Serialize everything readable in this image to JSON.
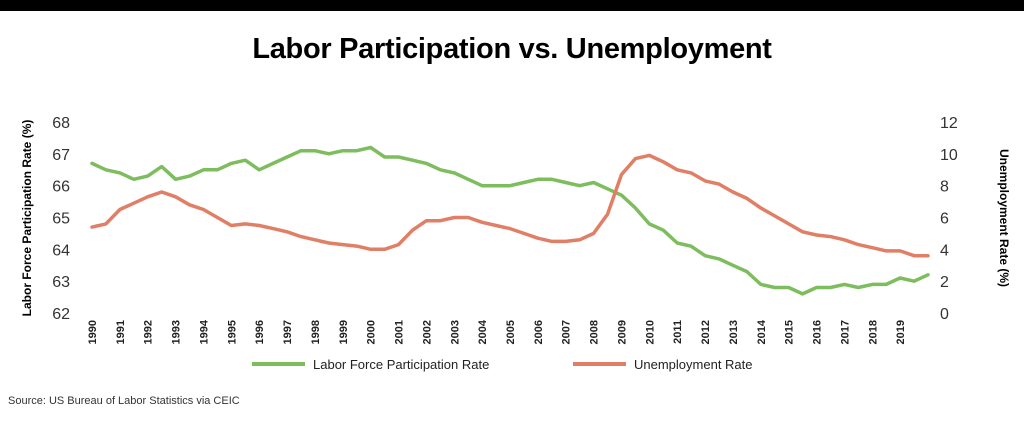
{
  "title": "Labor Participation vs. Unemployment",
  "source": "Source: US Bureau of Labor Statistics via CEIC",
  "colors": {
    "lfpr": "#7dbd5e",
    "unemp": "#e07f65",
    "background": "#ffffff",
    "topbar": "#000000"
  },
  "chart_data": {
    "type": "line",
    "title": "Labor Participation vs. Unemployment",
    "ylabel_left": "Labor Force Participation Rate (%)",
    "ylabel_right": "Unemployment Rate (%)",
    "xlabel": "",
    "ylim_left": [
      62,
      68
    ],
    "yticks_left": [
      62,
      63,
      64,
      65,
      66,
      67,
      68
    ],
    "ylim_right": [
      0,
      12
    ],
    "yticks_right": [
      0,
      2,
      4,
      6,
      8,
      10,
      12
    ],
    "xlim": [
      1990,
      2020
    ],
    "xticks": [
      "1990",
      "1991",
      "1992",
      "1993",
      "1994",
      "1995",
      "1996",
      "1997",
      "1998",
      "1999",
      "2000",
      "2001",
      "2002",
      "2003",
      "2004",
      "2005",
      "2006",
      "2007",
      "2008",
      "2009",
      "2010",
      "2011",
      "2012",
      "2013",
      "2014",
      "2015",
      "2016",
      "2017",
      "2018",
      "2019"
    ],
    "grid": false,
    "legend_position": "bottom",
    "series": [
      {
        "name": "Labor Force Participation Rate",
        "axis": "left",
        "color": "#7dbd5e",
        "x": [
          1990.0,
          1990.5,
          1991.0,
          1991.5,
          1992.0,
          1992.5,
          1993.0,
          1993.5,
          1994.0,
          1994.5,
          1995.0,
          1995.5,
          1996.0,
          1996.5,
          1997.0,
          1997.5,
          1998.0,
          1998.5,
          1999.0,
          1999.5,
          2000.0,
          2000.5,
          2001.0,
          2001.5,
          2002.0,
          2002.5,
          2003.0,
          2003.5,
          2004.0,
          2004.5,
          2005.0,
          2005.5,
          2006.0,
          2006.5,
          2007.0,
          2007.5,
          2008.0,
          2008.5,
          2009.0,
          2009.5,
          2010.0,
          2010.5,
          2011.0,
          2011.5,
          2012.0,
          2012.5,
          2013.0,
          2013.5,
          2014.0,
          2014.5,
          2015.0,
          2015.5,
          2016.0,
          2016.5,
          2017.0,
          2017.5,
          2018.0,
          2018.5,
          2019.0,
          2019.5,
          2020.0
        ],
        "y": [
          66.7,
          66.5,
          66.4,
          66.2,
          66.3,
          66.6,
          66.2,
          66.3,
          66.5,
          66.5,
          66.7,
          66.8,
          66.5,
          66.7,
          66.9,
          67.1,
          67.1,
          67.0,
          67.1,
          67.1,
          67.2,
          66.9,
          66.9,
          66.8,
          66.7,
          66.5,
          66.4,
          66.2,
          66.0,
          66.0,
          66.0,
          66.1,
          66.2,
          66.2,
          66.1,
          66.0,
          66.1,
          65.9,
          65.7,
          65.3,
          64.8,
          64.6,
          64.2,
          64.1,
          63.8,
          63.7,
          63.5,
          63.3,
          62.9,
          62.8,
          62.8,
          62.6,
          62.8,
          62.8,
          62.9,
          62.8,
          62.9,
          62.9,
          63.1,
          63.0,
          63.2
        ]
      },
      {
        "name": "Unemployment Rate",
        "axis": "right",
        "color": "#e07f65",
        "x": [
          1990.0,
          1990.5,
          1991.0,
          1991.5,
          1992.0,
          1992.5,
          1993.0,
          1993.5,
          1994.0,
          1994.5,
          1995.0,
          1995.5,
          1996.0,
          1996.5,
          1997.0,
          1997.5,
          1998.0,
          1998.5,
          1999.0,
          1999.5,
          2000.0,
          2000.5,
          2001.0,
          2001.5,
          2002.0,
          2002.5,
          2003.0,
          2003.5,
          2004.0,
          2004.5,
          2005.0,
          2005.5,
          2006.0,
          2006.5,
          2007.0,
          2007.5,
          2008.0,
          2008.5,
          2009.0,
          2009.5,
          2010.0,
          2010.5,
          2011.0,
          2011.5,
          2012.0,
          2012.5,
          2013.0,
          2013.5,
          2014.0,
          2014.5,
          2015.0,
          2015.5,
          2016.0,
          2016.5,
          2017.0,
          2017.5,
          2018.0,
          2018.5,
          2019.0,
          2019.5,
          2020.0
        ],
        "y": [
          5.4,
          5.6,
          6.5,
          6.9,
          7.3,
          7.6,
          7.3,
          6.8,
          6.5,
          6.0,
          5.5,
          5.6,
          5.5,
          5.3,
          5.1,
          4.8,
          4.6,
          4.4,
          4.3,
          4.2,
          4.0,
          4.0,
          4.3,
          5.2,
          5.8,
          5.8,
          6.0,
          6.0,
          5.7,
          5.5,
          5.3,
          5.0,
          4.7,
          4.5,
          4.5,
          4.6,
          5.0,
          6.2,
          8.7,
          9.7,
          9.9,
          9.5,
          9.0,
          8.8,
          8.3,
          8.1,
          7.6,
          7.2,
          6.6,
          6.1,
          5.6,
          5.1,
          4.9,
          4.8,
          4.6,
          4.3,
          4.1,
          3.9,
          3.9,
          3.6,
          3.6
        ]
      }
    ]
  }
}
